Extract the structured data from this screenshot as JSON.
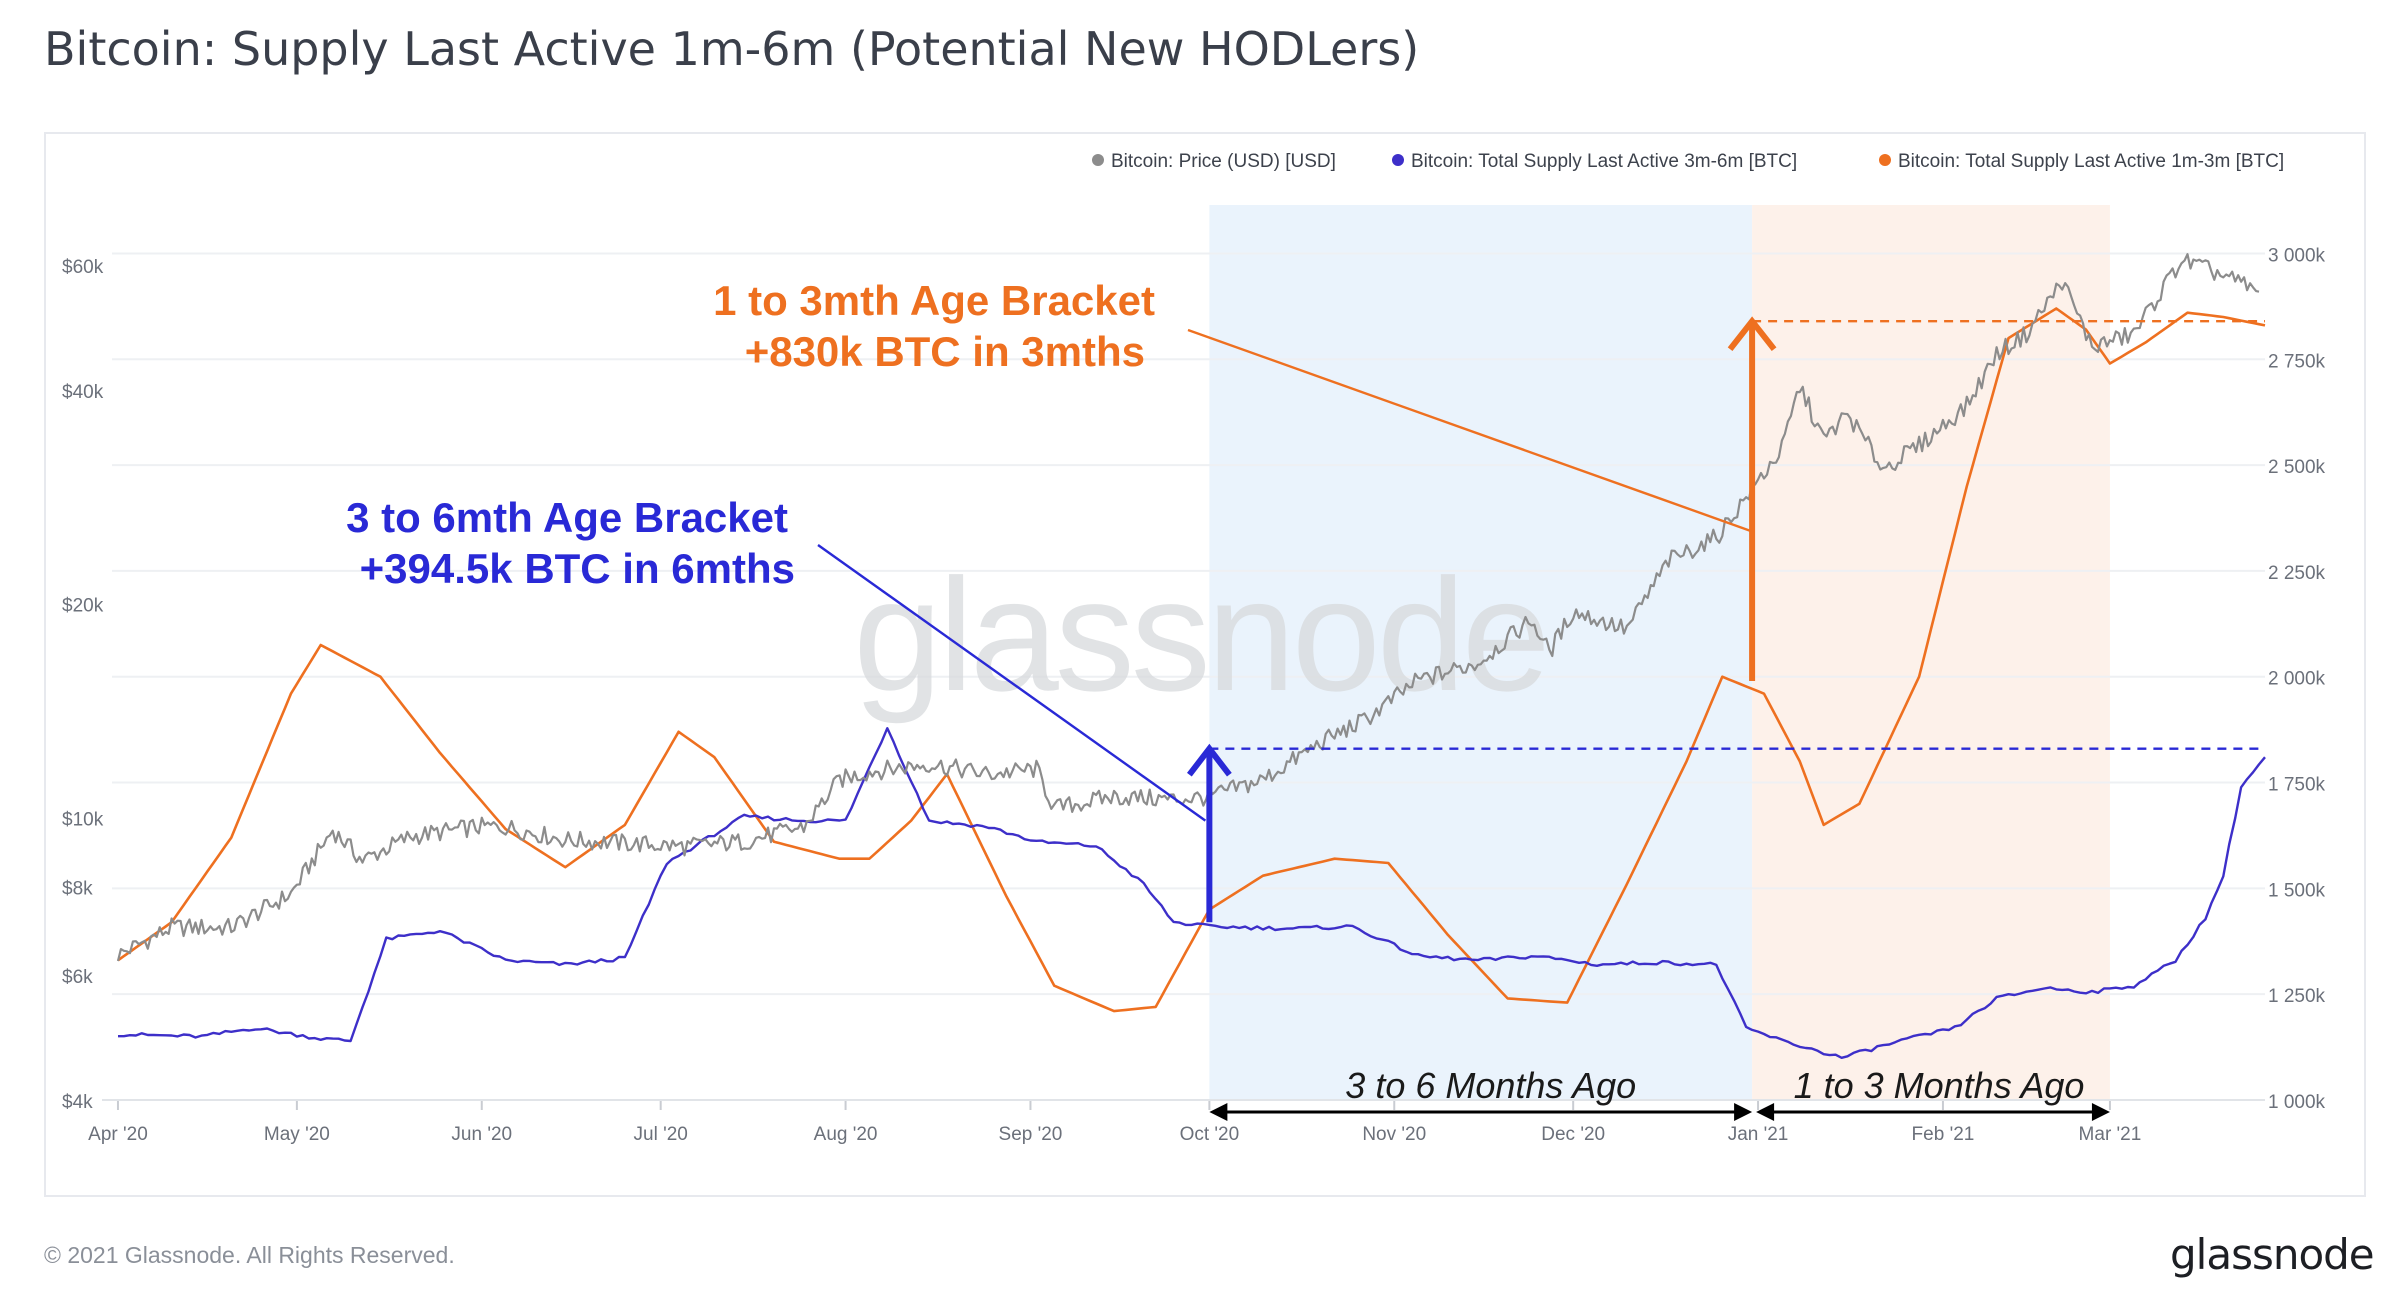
{
  "title": "Bitcoin: Supply Last Active 1m-6m (Potential New HODLers)",
  "footer": {
    "copyright": "© 2021 Glassnode. All Rights Reserved.",
    "logo": "glassnode"
  },
  "watermark": "glassnode",
  "chart_data": {
    "type": "line",
    "title": "Bitcoin: Supply Last Active 1m-6m (Potential New HODLers)",
    "x_ticks": [
      "Apr '20",
      "May '20",
      "Jun '20",
      "Jul '20",
      "Aug '20",
      "Sep '20",
      "Oct '20",
      "Nov '20",
      "Dec '20",
      "Jan '21",
      "Feb '21",
      "Mar '21"
    ],
    "xlim": [
      "2020-03-31",
      "2021-03-27"
    ],
    "y_left": {
      "scale": "log",
      "ticks": [
        "$4k",
        "$6k",
        "$8k",
        "$10k",
        "$20k",
        "$40k",
        "$60k"
      ],
      "tick_values": [
        4000,
        6000,
        8000,
        10000,
        20000,
        40000,
        60000
      ],
      "ylim": [
        4000,
        64000
      ]
    },
    "y_right": {
      "scale": "linear",
      "ticks": [
        "1 000k",
        "1 250k",
        "1 500k",
        "1 750k",
        "2 000k",
        "2 250k",
        "2 500k",
        "2 750k",
        "3 000k"
      ],
      "tick_values": [
        1000000,
        1250000,
        1500000,
        1750000,
        2000000,
        2250000,
        2500000,
        2750000,
        3000000
      ],
      "ylim": [
        1000000,
        3020000
      ]
    },
    "legend_position": "top-right",
    "grid": true,
    "colors": {
      "price": "#8c8c8c",
      "supply_3m6m": "#3d2fc9",
      "supply_1m3m": "#ee7020"
    },
    "series": [
      {
        "name": "Bitcoin: Price (USD) [USD]",
        "axis": "left",
        "color": "#8c8c8c",
        "points": [
          [
            "2020-04-01",
            6400
          ],
          [
            "2020-04-10",
            7000
          ],
          [
            "2020-04-20",
            7000
          ],
          [
            "2020-04-30",
            7800
          ],
          [
            "2020-05-07",
            9600
          ],
          [
            "2020-05-12",
            8700
          ],
          [
            "2020-05-20",
            9400
          ],
          [
            "2020-05-31",
            9700
          ],
          [
            "2020-06-05",
            9700
          ],
          [
            "2020-06-15",
            9300
          ],
          [
            "2020-06-25",
            9200
          ],
          [
            "2020-07-05",
            9100
          ],
          [
            "2020-07-15",
            9250
          ],
          [
            "2020-07-25",
            9700
          ],
          [
            "2020-07-31",
            11300
          ],
          [
            "2020-08-05",
            11600
          ],
          [
            "2020-08-15",
            11900
          ],
          [
            "2020-08-25",
            11500
          ],
          [
            "2020-09-02",
            11700
          ],
          [
            "2020-09-05",
            10300
          ],
          [
            "2020-09-15",
            10700
          ],
          [
            "2020-09-25",
            10600
          ],
          [
            "2020-10-01",
            10700
          ],
          [
            "2020-10-10",
            11300
          ],
          [
            "2020-10-20",
            12800
          ],
          [
            "2020-10-27",
            13700
          ],
          [
            "2020-11-05",
            15600
          ],
          [
            "2020-11-15",
            16500
          ],
          [
            "2020-11-24",
            19000
          ],
          [
            "2020-11-27",
            17100
          ],
          [
            "2020-12-01",
            19500
          ],
          [
            "2020-12-10",
            18400
          ],
          [
            "2020-12-17",
            23000
          ],
          [
            "2020-12-25",
            24800
          ],
          [
            "2020-12-31",
            29000
          ],
          [
            "2021-01-05",
            33000
          ],
          [
            "2021-01-08",
            40500
          ],
          [
            "2021-01-12",
            34000
          ],
          [
            "2021-01-16",
            37000
          ],
          [
            "2021-01-22",
            31000
          ],
          [
            "2021-01-28",
            33400
          ],
          [
            "2021-02-05",
            38000
          ],
          [
            "2021-02-10",
            45000
          ],
          [
            "2021-02-15",
            48000
          ],
          [
            "2021-02-21",
            57000
          ],
          [
            "2021-02-26",
            46000
          ],
          [
            "2021-03-05",
            48000
          ],
          [
            "2021-03-13",
            61000
          ],
          [
            "2021-03-20",
            58000
          ],
          [
            "2021-03-26",
            55000
          ]
        ]
      },
      {
        "name": "Bitcoin: Total Supply Last Active 3m-6m [BTC]",
        "axis": "right",
        "color": "#3d2fc9",
        "points": [
          [
            "2020-04-01",
            1155000
          ],
          [
            "2020-04-15",
            1150000
          ],
          [
            "2020-04-24",
            1170000
          ],
          [
            "2020-05-05",
            1145000
          ],
          [
            "2020-05-10",
            1140000
          ],
          [
            "2020-05-16",
            1380000
          ],
          [
            "2020-05-25",
            1400000
          ],
          [
            "2020-06-05",
            1330000
          ],
          [
            "2020-06-15",
            1320000
          ],
          [
            "2020-06-25",
            1335000
          ],
          [
            "2020-07-02",
            1560000
          ],
          [
            "2020-07-15",
            1670000
          ],
          [
            "2020-07-25",
            1660000
          ],
          [
            "2020-08-01",
            1660000
          ],
          [
            "2020-08-08",
            1880000
          ],
          [
            "2020-08-15",
            1660000
          ],
          [
            "2020-08-25",
            1645000
          ],
          [
            "2020-09-02",
            1610000
          ],
          [
            "2020-09-12",
            1600000
          ],
          [
            "2020-09-20",
            1510000
          ],
          [
            "2020-09-25",
            1420000
          ],
          [
            "2020-10-01",
            1410000
          ],
          [
            "2020-10-15",
            1405000
          ],
          [
            "2020-10-25",
            1410000
          ],
          [
            "2020-11-05",
            1340000
          ],
          [
            "2020-11-15",
            1330000
          ],
          [
            "2020-11-25",
            1340000
          ],
          [
            "2020-12-05",
            1320000
          ],
          [
            "2020-12-15",
            1325000
          ],
          [
            "2020-12-25",
            1320000
          ],
          [
            "2020-12-30",
            1170000
          ],
          [
            "2021-01-05",
            1140000
          ],
          [
            "2021-01-15",
            1100000
          ],
          [
            "2021-01-25",
            1140000
          ],
          [
            "2021-02-03",
            1170000
          ],
          [
            "2021-02-10",
            1240000
          ],
          [
            "2021-02-18",
            1265000
          ],
          [
            "2021-02-26",
            1255000
          ],
          [
            "2021-03-05",
            1270000
          ],
          [
            "2021-03-12",
            1330000
          ],
          [
            "2021-03-17",
            1430000
          ],
          [
            "2021-03-20",
            1530000
          ],
          [
            "2021-03-23",
            1740000
          ],
          [
            "2021-03-27",
            1810000
          ]
        ]
      },
      {
        "name": "Bitcoin: Total Supply Last Active 1m-3m [BTC]",
        "axis": "right",
        "color": "#ee7020",
        "points": [
          [
            "2020-04-01",
            1330000
          ],
          [
            "2020-04-10",
            1420000
          ],
          [
            "2020-04-20",
            1620000
          ],
          [
            "2020-04-30",
            1960000
          ],
          [
            "2020-05-05",
            2075000
          ],
          [
            "2020-05-15",
            2000000
          ],
          [
            "2020-05-25",
            1820000
          ],
          [
            "2020-06-05",
            1640000
          ],
          [
            "2020-06-15",
            1550000
          ],
          [
            "2020-06-25",
            1650000
          ],
          [
            "2020-07-04",
            1870000
          ],
          [
            "2020-07-10",
            1810000
          ],
          [
            "2020-07-20",
            1610000
          ],
          [
            "2020-07-31",
            1570000
          ],
          [
            "2020-08-05",
            1570000
          ],
          [
            "2020-08-12",
            1660000
          ],
          [
            "2020-08-18",
            1770000
          ],
          [
            "2020-08-28",
            1480000
          ],
          [
            "2020-09-05",
            1270000
          ],
          [
            "2020-09-15",
            1210000
          ],
          [
            "2020-09-22",
            1220000
          ],
          [
            "2020-10-01",
            1450000
          ],
          [
            "2020-10-10",
            1530000
          ],
          [
            "2020-10-22",
            1570000
          ],
          [
            "2020-10-31",
            1560000
          ],
          [
            "2020-11-10",
            1390000
          ],
          [
            "2020-11-20",
            1240000
          ],
          [
            "2020-11-30",
            1230000
          ],
          [
            "2020-12-10",
            1510000
          ],
          [
            "2020-12-20",
            1800000
          ],
          [
            "2020-12-26",
            2000000
          ],
          [
            "2021-01-02",
            1960000
          ],
          [
            "2021-01-08",
            1800000
          ],
          [
            "2021-01-12",
            1650000
          ],
          [
            "2021-01-18",
            1700000
          ],
          [
            "2021-01-28",
            2000000
          ],
          [
            "2021-02-05",
            2450000
          ],
          [
            "2021-02-12",
            2800000
          ],
          [
            "2021-02-20",
            2870000
          ],
          [
            "2021-02-25",
            2820000
          ],
          [
            "2021-03-01",
            2740000
          ],
          [
            "2021-03-07",
            2790000
          ],
          [
            "2021-03-14",
            2860000
          ],
          [
            "2021-03-20",
            2850000
          ],
          [
            "2021-03-27",
            2830000
          ]
        ]
      }
    ],
    "shaded_regions": [
      {
        "from": "2020-10-01",
        "to": "2020-12-31",
        "color": "#eaf3fc"
      },
      {
        "from": "2020-12-31",
        "to": "2021-03-01",
        "color": "#fdf1ea"
      }
    ],
    "reference_lines": [
      {
        "axis": "right",
        "value": 1830000,
        "from": "2020-10-01",
        "to": "2021-03-27",
        "color": "#2929d6",
        "style": "dashed"
      },
      {
        "axis": "right",
        "value": 2840000,
        "from": "2020-12-31",
        "to": "2021-03-27",
        "color": "#ee7020",
        "style": "dashed"
      }
    ],
    "annotations": [
      {
        "id": "orange",
        "lines": [
          "1 to 3mth Age Bracket",
          "+830k BTC in 3mths"
        ],
        "color": "#ee7020"
      },
      {
        "id": "blue",
        "lines": [
          "3 to 6mth Age Bracket",
          "+394.5k BTC in 6mths"
        ],
        "color": "#2929d6"
      },
      {
        "id": "range1",
        "text": "3 to 6 Months Ago"
      },
      {
        "id": "range2",
        "text": "1 to 3 Months Ago"
      }
    ]
  }
}
